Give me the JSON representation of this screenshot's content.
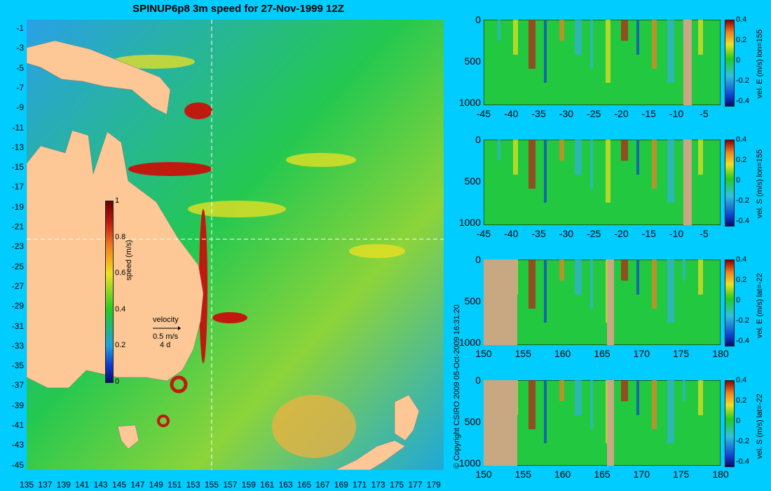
{
  "title": "SPINUP6p8 3m speed for 27-Nov-1999 12Z",
  "copyright": "© Copyright CSIRO 2009   05-Oct-2009 16:31:20",
  "velocity_legend": {
    "label": "velocity",
    "speed": "0.5 m/s",
    "days": "4 d"
  },
  "colors": {
    "background": "#00ccff",
    "land": "#fdc896",
    "ocean_mid": "#22cc33"
  },
  "chart_data": [
    {
      "type": "heatmap",
      "title": "SPINUP6p8 3m speed for 27-Nov-1999 12Z",
      "x_ticks": [
        "135",
        "137",
        "139",
        "141",
        "143",
        "145",
        "147",
        "149",
        "151",
        "153",
        "155",
        "157",
        "159",
        "161",
        "163",
        "165",
        "167",
        "169",
        "171",
        "173",
        "175",
        "177",
        "179"
      ],
      "y_ticks": [
        "-1",
        "-3",
        "-5",
        "-7",
        "-9",
        "-11",
        "-13",
        "-15",
        "-17",
        "-19",
        "-21",
        "-23",
        "-25",
        "-27",
        "-29",
        "-31",
        "-33",
        "-35",
        "-37",
        "-39",
        "-41",
        "-43",
        "-45"
      ],
      "xlim": [
        135,
        180
      ],
      "ylim": [
        -45,
        0
      ],
      "colorbar": {
        "label": "speed (m/s)",
        "ticks": [
          "1",
          "0.8",
          "0.6",
          "0.4",
          "0.2",
          "0"
        ],
        "range": [
          0,
          1
        ]
      },
      "dashed_lines": {
        "lon": 155,
        "lat": -22
      }
    },
    {
      "type": "heatmap",
      "x_ticks": [
        "-45",
        "-40",
        "-35",
        "-30",
        "-25",
        "-20",
        "-15",
        "-10",
        "-5"
      ],
      "y_ticks": [
        "0",
        "500",
        "1000"
      ],
      "xlim": [
        -45,
        -2
      ],
      "ylim": [
        1050,
        0
      ],
      "colorbar": {
        "label": "vel. E (m/s) lon=155",
        "ticks": [
          "0.4",
          "0.2",
          "0",
          "-0.2",
          "-0.4"
        ]
      }
    },
    {
      "type": "heatmap",
      "x_ticks": [
        "-45",
        "-40",
        "-35",
        "-30",
        "-25",
        "-20",
        "-15",
        "-10",
        "-5"
      ],
      "y_ticks": [
        "0",
        "500",
        "1000"
      ],
      "xlim": [
        -45,
        -2
      ],
      "ylim": [
        1050,
        0
      ],
      "colorbar": {
        "label": "vel. S (m/s) lon=155",
        "ticks": [
          "0.4",
          "0.2",
          "0",
          "-0.2",
          "-0.4"
        ]
      }
    },
    {
      "type": "heatmap",
      "x_ticks": [
        "150",
        "155",
        "160",
        "165",
        "170",
        "175",
        "180"
      ],
      "y_ticks": [
        "0",
        "500",
        "1000"
      ],
      "xlim": [
        150,
        180
      ],
      "ylim": [
        1050,
        0
      ],
      "colorbar": {
        "label": "vel. E (m/s) lat=-22",
        "ticks": [
          "0.4",
          "0.2",
          "0",
          "-0.2",
          "-0.4"
        ]
      }
    },
    {
      "type": "heatmap",
      "x_ticks": [
        "150",
        "155",
        "160",
        "165",
        "170",
        "175",
        "180"
      ],
      "y_ticks": [
        "0",
        "500",
        "1000"
      ],
      "xlim": [
        150,
        180
      ],
      "ylim": [
        1050,
        0
      ],
      "colorbar": {
        "label": "vel. S (m/s) lat=-22",
        "ticks": [
          "0.4",
          "0.2",
          "0",
          "-0.2",
          "-0.4"
        ]
      }
    }
  ]
}
